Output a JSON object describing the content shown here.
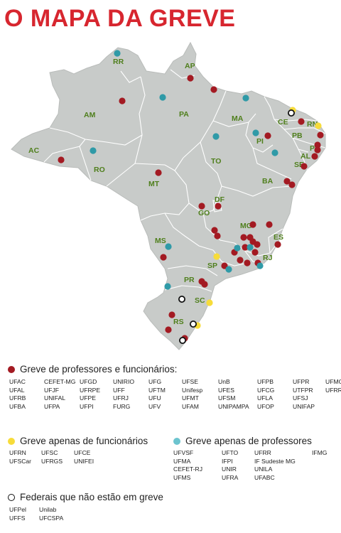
{
  "title": "O MAPA DA GREVE",
  "colors": {
    "title": "#d7262f",
    "map_fill": "#c8cbc9",
    "state_border": "#ffffff",
    "state_label": "#4f7f1c",
    "strike_both": "#a31a22",
    "strike_staff": "#f7dc3a",
    "strike_professors": "#2f9aa7",
    "not_on_strike": "#ffffff"
  },
  "states": [
    "RR",
    "AP",
    "AM",
    "PA",
    "MA",
    "CE",
    "RN",
    "PB",
    "PE",
    "AL",
    "SE",
    "PI",
    "AC",
    "RO",
    "TO",
    "BA",
    "MT",
    "DF",
    "GO",
    "MG",
    "ES",
    "MS",
    "SP",
    "RJ",
    "PR",
    "SC",
    "RS"
  ],
  "legend": {
    "both": {
      "label": "Greve de professores e funcionários:",
      "universities": [
        "UFAC",
        "UFAL",
        "UFRB",
        "UFBA",
        "CEFET-MG",
        "UFJF",
        "UNIFAL",
        "UFPA",
        "UFGD",
        "UFRPE",
        "UFPE",
        "UFPI",
        "UNIRIO",
        "UFF",
        "UFRJ",
        "FURG",
        "UFG",
        "UFTM",
        "UFU",
        "UFV",
        "UFSE",
        "Unifesp",
        "UFMT",
        "UFAM",
        "UnB",
        "UFES",
        "UFSM",
        "UNIPAMPA",
        "UFPB",
        "UFCG",
        "UFLA",
        "UFOP",
        "UFPR",
        "UTFPR",
        "UFSJ",
        "UNIFAP",
        "UFMG",
        "UFRRJ"
      ]
    },
    "staff_only": {
      "label": "Greve apenas de funcionários",
      "universities": [
        "UFRN",
        "UFSCar",
        "UFSC",
        "UFRGS",
        "UFCE",
        "UNIFEI"
      ]
    },
    "professors_only": {
      "label": "Greve apenas de professores",
      "universities": [
        "UFVSF",
        "UFMA",
        "CEFET-RJ",
        "UFMS",
        "UFTO",
        "IFPI",
        "UNIR",
        "UFRA",
        "UFRR",
        "IF Sudeste MG",
        "UNILA",
        "UFABC",
        "IFMG"
      ]
    },
    "not_on_strike": {
      "label": "Federais que não estão em greve",
      "universities": [
        "UFPel",
        "UFFS",
        "Unilab",
        "UFCSPA"
      ]
    }
  }
}
